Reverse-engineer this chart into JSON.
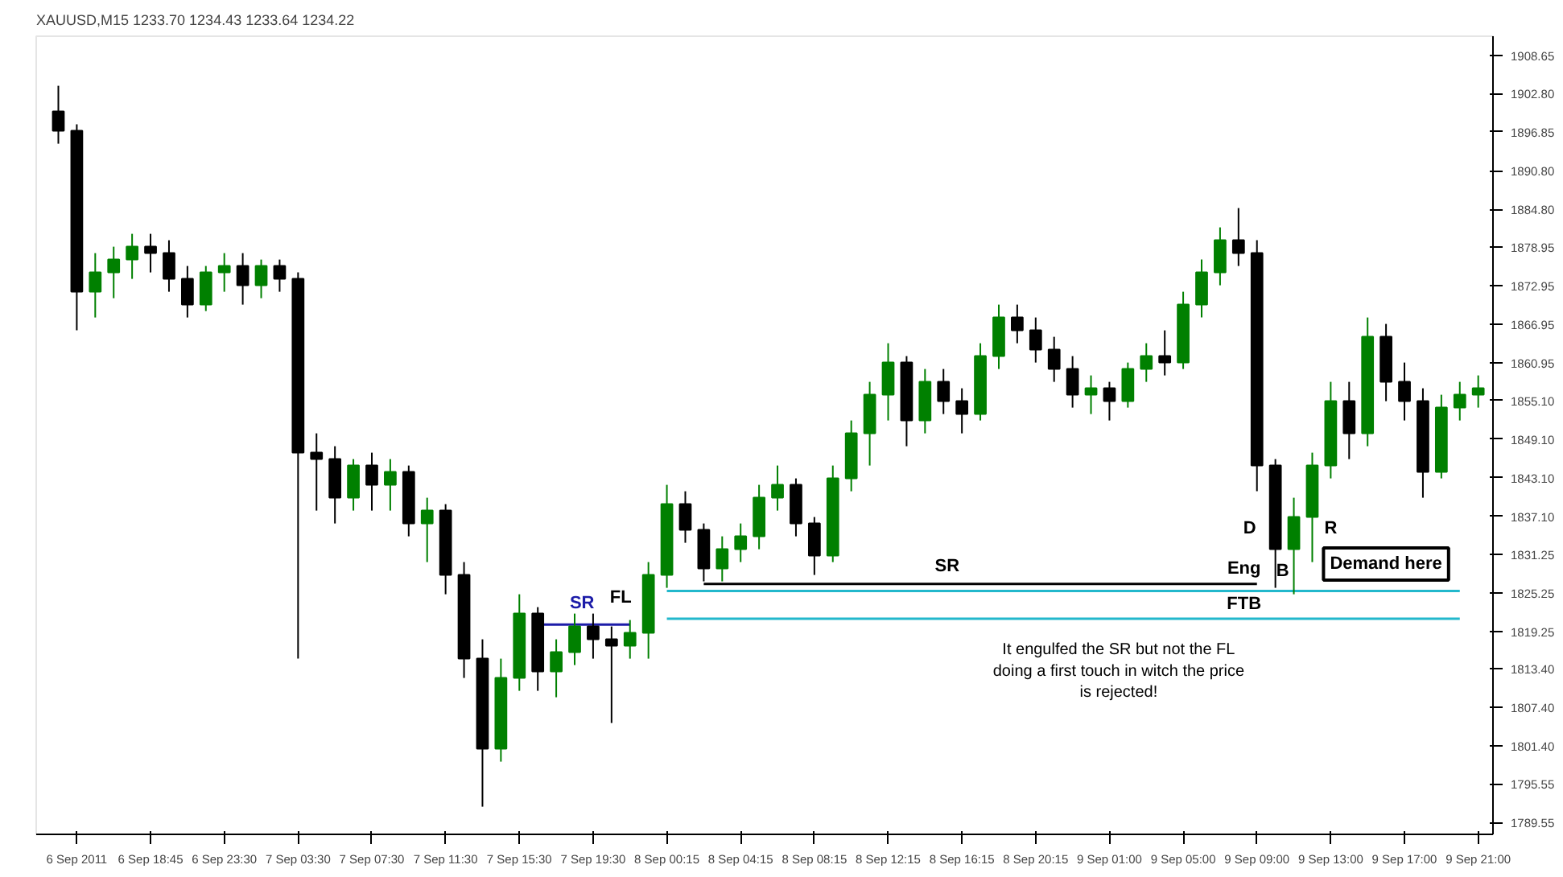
{
  "chart_data": {
    "type": "candlestick",
    "title": "XAUUSD,M15  1233.70 1234.43 1233.64 1234.22",
    "categories": [
      null,
      "6 Sep 2011",
      null,
      null,
      null,
      "6 Sep 18:45",
      null,
      null,
      null,
      "6 Sep 23:30",
      null,
      null,
      null,
      "7 Sep 03:30",
      null,
      null,
      null,
      "7 Sep 07:30",
      null,
      null,
      null,
      "7 Sep 11:30",
      null,
      null,
      null,
      "7 Sep 15:30",
      null,
      null,
      null,
      "7 Sep 19:30",
      null,
      null,
      null,
      "8 Sep 00:15",
      null,
      null,
      null,
      "8 Sep 04:15",
      null,
      null,
      null,
      "8 Sep 08:15",
      null,
      null,
      null,
      "8 Sep 12:15",
      null,
      null,
      null,
      "8 Sep 16:15",
      null,
      null,
      null,
      "8 Sep 20:15",
      null,
      null,
      null,
      "9 Sep 01:00",
      null,
      null,
      null,
      "9 Sep 05:00",
      null,
      null,
      null,
      "9 Sep 09:00",
      null,
      null,
      null,
      "9 Sep 13:00",
      null,
      null,
      null,
      "9 Sep 17:00",
      null,
      null,
      null,
      "9 Sep 21:00"
    ],
    "ohlc": [
      [
        1900,
        1904,
        1895,
        1897
      ],
      [
        1897,
        1898,
        1866,
        1872
      ],
      [
        1872,
        1878,
        1868,
        1875
      ],
      [
        1875,
        1879,
        1871,
        1877
      ],
      [
        1877,
        1881,
        1874,
        1879
      ],
      [
        1879,
        1881,
        1875,
        1878
      ],
      [
        1878,
        1880,
        1872,
        1874
      ],
      [
        1874,
        1876,
        1868,
        1870
      ],
      [
        1870,
        1876,
        1869,
        1875
      ],
      [
        1875,
        1878,
        1872,
        1876
      ],
      [
        1876,
        1878,
        1870,
        1873
      ],
      [
        1873,
        1877,
        1871,
        1876
      ],
      [
        1876,
        1877,
        1872,
        1874
      ],
      [
        1874,
        1875,
        1815,
        1847
      ],
      [
        1847,
        1850,
        1838,
        1846
      ],
      [
        1846,
        1848,
        1836,
        1840
      ],
      [
        1840,
        1846,
        1838,
        1845
      ],
      [
        1845,
        1847,
        1838,
        1842
      ],
      [
        1842,
        1846,
        1838,
        1844
      ],
      [
        1844,
        1845,
        1834,
        1836
      ],
      [
        1836,
        1840,
        1830,
        1838
      ],
      [
        1838,
        1839,
        1825,
        1828
      ],
      [
        1828,
        1830,
        1812,
        1815
      ],
      [
        1815,
        1818,
        1792,
        1801
      ],
      [
        1801,
        1815,
        1799,
        1812
      ],
      [
        1812,
        1825,
        1810,
        1822
      ],
      [
        1822,
        1823,
        1810,
        1813
      ],
      [
        1813,
        1818,
        1809,
        1816
      ],
      [
        1816,
        1822,
        1814,
        1820
      ],
      [
        1820,
        1822,
        1815,
        1818
      ],
      [
        1818,
        1820,
        1805,
        1817
      ],
      [
        1817,
        1821,
        1815,
        1819
      ],
      [
        1819,
        1830,
        1815,
        1828
      ],
      [
        1828,
        1842,
        1826,
        1839
      ],
      [
        1839,
        1841,
        1833,
        1835
      ],
      [
        1835,
        1836,
        1827,
        1829
      ],
      [
        1829,
        1834,
        1827,
        1832
      ],
      [
        1832,
        1836,
        1830,
        1834
      ],
      [
        1834,
        1842,
        1832,
        1840
      ],
      [
        1840,
        1845,
        1838,
        1842
      ],
      [
        1842,
        1843,
        1834,
        1836
      ],
      [
        1836,
        1837,
        1828,
        1831
      ],
      [
        1831,
        1845,
        1830,
        1843
      ],
      [
        1843,
        1852,
        1841,
        1850
      ],
      [
        1850,
        1858,
        1845,
        1856
      ],
      [
        1856,
        1864,
        1852,
        1861
      ],
      [
        1861,
        1862,
        1848,
        1852
      ],
      [
        1852,
        1860,
        1850,
        1858
      ],
      [
        1858,
        1860,
        1853,
        1855
      ],
      [
        1855,
        1857,
        1850,
        1853
      ],
      [
        1853,
        1864,
        1852,
        1862
      ],
      [
        1862,
        1870,
        1860,
        1868
      ],
      [
        1868,
        1870,
        1864,
        1866
      ],
      [
        1866,
        1868,
        1861,
        1863
      ],
      [
        1863,
        1865,
        1858,
        1860
      ],
      [
        1860,
        1862,
        1854,
        1856
      ],
      [
        1856,
        1859,
        1853,
        1857
      ],
      [
        1857,
        1858,
        1852,
        1855
      ],
      [
        1855,
        1861,
        1854,
        1860
      ],
      [
        1860,
        1864,
        1858,
        1862
      ],
      [
        1862,
        1866,
        1859,
        1861
      ],
      [
        1861,
        1872,
        1860,
        1870
      ],
      [
        1870,
        1877,
        1868,
        1875
      ],
      [
        1875,
        1882,
        1873,
        1880
      ],
      [
        1880,
        1885,
        1876,
        1878
      ],
      [
        1878,
        1880,
        1841,
        1845
      ],
      [
        1845,
        1846,
        1826,
        1832
      ],
      [
        1832,
        1840,
        1825,
        1837
      ],
      [
        1837,
        1847,
        1830,
        1845
      ],
      [
        1845,
        1858,
        1843,
        1855
      ],
      [
        1855,
        1858,
        1846,
        1850
      ],
      [
        1850,
        1868,
        1848,
        1865
      ],
      [
        1865,
        1867,
        1855,
        1858
      ],
      [
        1858,
        1861,
        1852,
        1855
      ],
      [
        1855,
        1857,
        1840,
        1844
      ],
      [
        1844,
        1856,
        1843,
        1854
      ],
      [
        1854,
        1858,
        1852,
        1856
      ],
      [
        1856,
        1859,
        1854,
        1857
      ]
    ],
    "colors": [
      "#000000",
      "#000000",
      "#008000",
      "#008000",
      "#008000",
      "#000000",
      "#000000",
      "#000000",
      "#008000",
      "#008000",
      "#000000",
      "#008000",
      "#000000",
      "#000000",
      "#000000",
      "#000000",
      "#008000",
      "#000000",
      "#008000",
      "#000000",
      "#008000",
      "#000000",
      "#000000",
      "#000000",
      "#008000",
      "#008000",
      "#000000",
      "#008000",
      "#008000",
      "#000000",
      "#000000",
      "#008000",
      "#008000",
      "#008000",
      "#000000",
      "#000000",
      "#008000",
      "#008000",
      "#008000",
      "#008000",
      "#000000",
      "#000000",
      "#008000",
      "#008000",
      "#008000",
      "#008000",
      "#000000",
      "#008000",
      "#000000",
      "#000000",
      "#008000",
      "#008000",
      "#000000",
      "#000000",
      "#000000",
      "#000000",
      "#008000",
      "#000000",
      "#008000",
      "#008000",
      "#000000",
      "#008000",
      "#008000",
      "#008000",
      "#000000",
      "#000000",
      "#000000",
      "#008000",
      "#008000",
      "#008000",
      "#000000",
      "#008000",
      "#000000",
      "#000000",
      "#000000",
      "#008000",
      "#008000",
      "#008000"
    ],
    "series": [
      {
        "type": "line",
        "color": "#1c1ca8",
        "values": [
          null,
          null,
          null,
          null,
          null,
          null,
          null,
          null,
          null,
          null,
          null,
          null,
          null,
          null,
          null,
          null,
          null,
          null,
          null,
          null,
          null,
          null,
          null,
          null,
          null,
          null,
          1820.3,
          1820.3,
          1820.3,
          1820.3,
          1820.3,
          1820.3,
          null,
          null,
          null,
          null,
          null,
          null,
          null,
          null,
          null,
          null,
          null,
          null,
          null,
          null,
          null,
          null,
          null,
          null,
          null,
          null,
          null,
          null,
          null,
          null,
          null,
          null,
          null,
          null,
          null,
          null,
          null,
          null,
          null,
          null,
          null,
          null,
          null,
          null,
          null,
          null,
          null,
          null,
          null,
          null,
          null,
          null
        ]
      },
      {
        "type": "line",
        "color": "#000000",
        "values": [
          null,
          null,
          null,
          null,
          null,
          null,
          null,
          null,
          null,
          null,
          null,
          null,
          null,
          null,
          null,
          null,
          null,
          null,
          null,
          null,
          null,
          null,
          null,
          null,
          null,
          null,
          null,
          null,
          null,
          null,
          null,
          null,
          null,
          null,
          null,
          1826.6,
          1826.6,
          1826.6,
          1826.6,
          1826.6,
          1826.6,
          1826.6,
          1826.6,
          1826.6,
          1826.6,
          1826.6,
          1826.6,
          1826.6,
          1826.6,
          1826.6,
          1826.6,
          1826.6,
          1826.6,
          1826.6,
          1826.6,
          1826.6,
          1826.6,
          1826.6,
          1826.6,
          1826.6,
          1826.6,
          1826.6,
          1826.6,
          1826.6,
          1826.6,
          1826.6,
          null,
          null,
          null,
          null,
          null,
          null,
          null,
          null,
          null,
          null,
          null,
          null
        ]
      },
      {
        "type": "line",
        "color": "#22b8cc",
        "values": [
          null,
          null,
          null,
          null,
          null,
          null,
          null,
          null,
          null,
          null,
          null,
          null,
          null,
          null,
          null,
          null,
          null,
          null,
          null,
          null,
          null,
          null,
          null,
          null,
          null,
          null,
          null,
          null,
          null,
          null,
          null,
          null,
          null,
          1825.5,
          1825.5,
          1825.5,
          1825.5,
          1825.5,
          1825.5,
          1825.5,
          1825.5,
          1825.5,
          1825.5,
          1825.5,
          1825.5,
          1825.5,
          1825.5,
          1825.5,
          1825.5,
          1825.5,
          1825.5,
          1825.5,
          1825.5,
          1825.5,
          1825.5,
          1825.5,
          1825.5,
          1825.5,
          1825.5,
          1825.5,
          1825.5,
          1825.5,
          1825.5,
          1825.5,
          1825.5,
          1825.5,
          1825.5,
          1825.5,
          1825.5,
          1825.5,
          1825.5,
          1825.5,
          1825.5,
          1825.5,
          1825.5,
          1825.5,
          1825.5,
          null
        ]
      },
      {
        "type": "line",
        "color": "#22b8cc",
        "values": [
          null,
          null,
          null,
          null,
          null,
          null,
          null,
          null,
          null,
          null,
          null,
          null,
          null,
          null,
          null,
          null,
          null,
          null,
          null,
          null,
          null,
          null,
          null,
          null,
          null,
          null,
          null,
          null,
          null,
          null,
          null,
          null,
          null,
          1821.2,
          1821.2,
          1821.2,
          1821.2,
          1821.2,
          1821.2,
          1821.2,
          1821.2,
          1821.2,
          1821.2,
          1821.2,
          1821.2,
          1821.2,
          1821.2,
          1821.2,
          1821.2,
          1821.2,
          1821.2,
          1821.2,
          1821.2,
          1821.2,
          1821.2,
          1821.2,
          1821.2,
          1821.2,
          1821.2,
          1821.2,
          1821.2,
          1821.2,
          1821.2,
          1821.2,
          1821.2,
          1821.2,
          1821.2,
          1821.2,
          1821.2,
          1821.2,
          1821.2,
          1821.2,
          1821.2,
          1821.2,
          1821.2,
          1821.2,
          1821.2,
          null
        ]
      }
    ],
    "annotations": [
      "SR",
      "FL",
      "SR",
      "Eng",
      "D",
      "B",
      "R",
      "FTB",
      "Demand here",
      "It engulfed the SR but not the FL\ndoing a first touch in witch the price\nis rejected!"
    ],
    "ylim": [
      1787.7,
      1911.7
    ],
    "yticks": [
      {
        "value": 1908.65,
        "label": "1908.65"
      },
      {
        "value": 1902.8,
        "label": "1902.80"
      },
      {
        "value": 1896.85,
        "label": "1896.85"
      },
      {
        "value": 1890.8,
        "label": "1890.80"
      },
      {
        "value": 1884.8,
        "label": "1884.80"
      },
      {
        "value": 1878.95,
        "label": "1878.95"
      },
      {
        "value": 1872.95,
        "label": "1872.95"
      },
      {
        "value": 1866.95,
        "label": "1866.95"
      },
      {
        "value": 1860.95,
        "label": "1860.95"
      },
      {
        "value": 1855.1,
        "label": "1855.10"
      },
      {
        "value": 1849.1,
        "label": "1849.10"
      },
      {
        "value": 1843.1,
        "label": "1843.10"
      },
      {
        "value": 1837.1,
        "label": "1837.10"
      },
      {
        "value": 1831.25,
        "label": "1831.25"
      },
      {
        "value": 1825.25,
        "label": "1825.25"
      },
      {
        "value": 1819.25,
        "label": "1819.25"
      },
      {
        "value": 1813.4,
        "label": "1813.40"
      },
      {
        "value": 1807.4,
        "label": "1807.40"
      },
      {
        "value": 1801.4,
        "label": "1801.40"
      },
      {
        "value": 1795.55,
        "label": "1795.55"
      },
      {
        "value": 1789.55,
        "label": "1789.55"
      }
    ]
  }
}
